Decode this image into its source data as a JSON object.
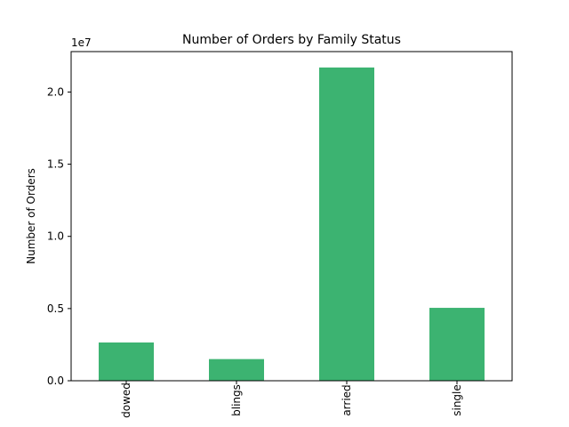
{
  "chart_data": {
    "type": "bar",
    "title": "Number of Orders by Family Status",
    "xlabel": "",
    "ylabel": "Number of Orders",
    "scale_note": "1e7",
    "categories": [
      "widowed",
      "siblings",
      "married",
      "single"
    ],
    "tick_labels_visible": [
      "dowed",
      "blings",
      "arried",
      "single"
    ],
    "values": [
      2650000,
      1500000,
      21700000,
      5050000
    ],
    "ylim": [
      0,
      22800000
    ],
    "yticks": [
      0,
      5000000,
      10000000,
      15000000,
      20000000
    ],
    "ytick_labels": [
      "0.0",
      "0.5",
      "1.0",
      "1.5",
      "2.0"
    ],
    "bar_color": "#3cb371",
    "grid": false,
    "legend": "none"
  }
}
